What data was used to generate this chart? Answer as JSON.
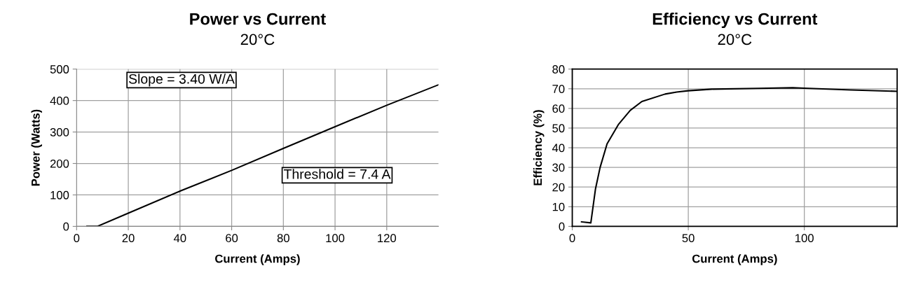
{
  "chart_data": [
    {
      "type": "line",
      "title": "Power vs Current",
      "subtitle": "20°C",
      "xlabel": "Current (Amps)",
      "ylabel": "Power (Watts)",
      "x": [
        4,
        8,
        20,
        40,
        60,
        80,
        100,
        120,
        140
      ],
      "series": [
        {
          "color": "#000000",
          "values": [
            0,
            0,
            42,
            112,
            178,
            248,
            317,
            385,
            450
          ]
        }
      ],
      "xlim": [
        0,
        140
      ],
      "xticks": [
        0,
        20,
        40,
        60,
        80,
        100,
        120
      ],
      "ylim": [
        0,
        500
      ],
      "yticks": [
        0,
        100,
        200,
        300,
        400,
        500
      ],
      "grid": true,
      "marker": "none",
      "line_style": "solid",
      "annotations": [
        "Slope = 3.40 W/A",
        "Threshold = 7.4 A"
      ]
    },
    {
      "type": "line",
      "title": "Efficiency vs Current",
      "subtitle": "20°C",
      "xlabel": "Current (Amps)",
      "ylabel": "Efficiency (%)",
      "x": [
        4,
        8,
        10,
        12,
        15,
        20,
        25,
        30,
        40,
        45,
        50,
        60,
        80,
        95,
        100,
        120,
        140
      ],
      "series": [
        {
          "color": "#000000",
          "values": [
            2.3,
            1.8,
            19,
            30,
            42,
            52,
            59,
            63.5,
            67.3,
            68.3,
            69,
            69.8,
            70.2,
            70.5,
            70.3,
            69.4,
            68.7
          ]
        }
      ],
      "xlim": [
        0,
        140
      ],
      "xticks": [
        0,
        50,
        100
      ],
      "ylim": [
        0,
        80
      ],
      "yticks": [
        0,
        10,
        20,
        30,
        40,
        50,
        60,
        70,
        80
      ],
      "grid": true,
      "marker": "none",
      "line_style": "solid"
    }
  ]
}
